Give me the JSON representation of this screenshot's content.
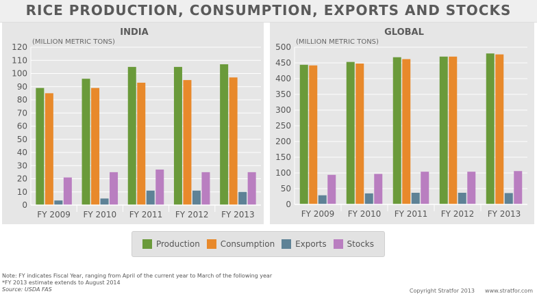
{
  "title": "RICE PRODUCTION, CONSUMPTION, EXPORTS AND STOCKS",
  "legend": [
    {
      "label": "Production",
      "color": "#6a9a3a"
    },
    {
      "label": "Consumption",
      "color": "#e8892b"
    },
    {
      "label": "Exports",
      "color": "#5e8296"
    },
    {
      "label": "Stocks",
      "color": "#b97ec0"
    }
  ],
  "footer": {
    "note1": "Note: FY indicates Fiscal Year, ranging from April of the current year to March of the following year",
    "note2": "*FY 2013 estimate extends to August 2014",
    "source": "Source: USDA FAS",
    "copyright": "Copyright Stratfor 2013",
    "website": "www.stratfor.com"
  },
  "chart_data": [
    {
      "type": "bar",
      "title": "INDIA",
      "ylabel": "(MILLION METRIC TONS)",
      "categories": [
        "FY 2009",
        "FY 2010",
        "FY 2011",
        "FY 2012",
        "FY 2013"
      ],
      "ylim": [
        0,
        120
      ],
      "yticks": [
        0,
        10,
        20,
        30,
        40,
        50,
        60,
        70,
        80,
        90,
        100,
        110,
        120
      ],
      "grid": true,
      "series": [
        {
          "name": "Production",
          "values": [
            89,
            96,
            105,
            105,
            107
          ]
        },
        {
          "name": "Consumption",
          "values": [
            85,
            89,
            93,
            95,
            97
          ]
        },
        {
          "name": "Exports",
          "values": [
            3.5,
            5,
            11,
            11,
            10
          ]
        },
        {
          "name": "Stocks",
          "values": [
            21,
            25,
            27,
            25,
            25
          ]
        }
      ]
    },
    {
      "type": "bar",
      "title": "GLOBAL",
      "ylabel": "(MILLION METRIC TONS)",
      "categories": [
        "FY 2009",
        "FY 2010",
        "FY 2011",
        "FY 2012",
        "FY 2013"
      ],
      "ylim": [
        0,
        500
      ],
      "yticks": [
        0,
        50,
        100,
        150,
        200,
        250,
        300,
        350,
        400,
        450,
        500
      ],
      "grid": true,
      "series": [
        {
          "name": "Production",
          "values": [
            444,
            453,
            468,
            470,
            480
          ]
        },
        {
          "name": "Consumption",
          "values": [
            442,
            448,
            462,
            470,
            477
          ]
        },
        {
          "name": "Exports",
          "values": [
            29,
            35,
            37,
            37,
            36
          ]
        },
        {
          "name": "Stocks",
          "values": [
            94,
            97,
            104,
            104,
            106
          ]
        }
      ]
    }
  ]
}
